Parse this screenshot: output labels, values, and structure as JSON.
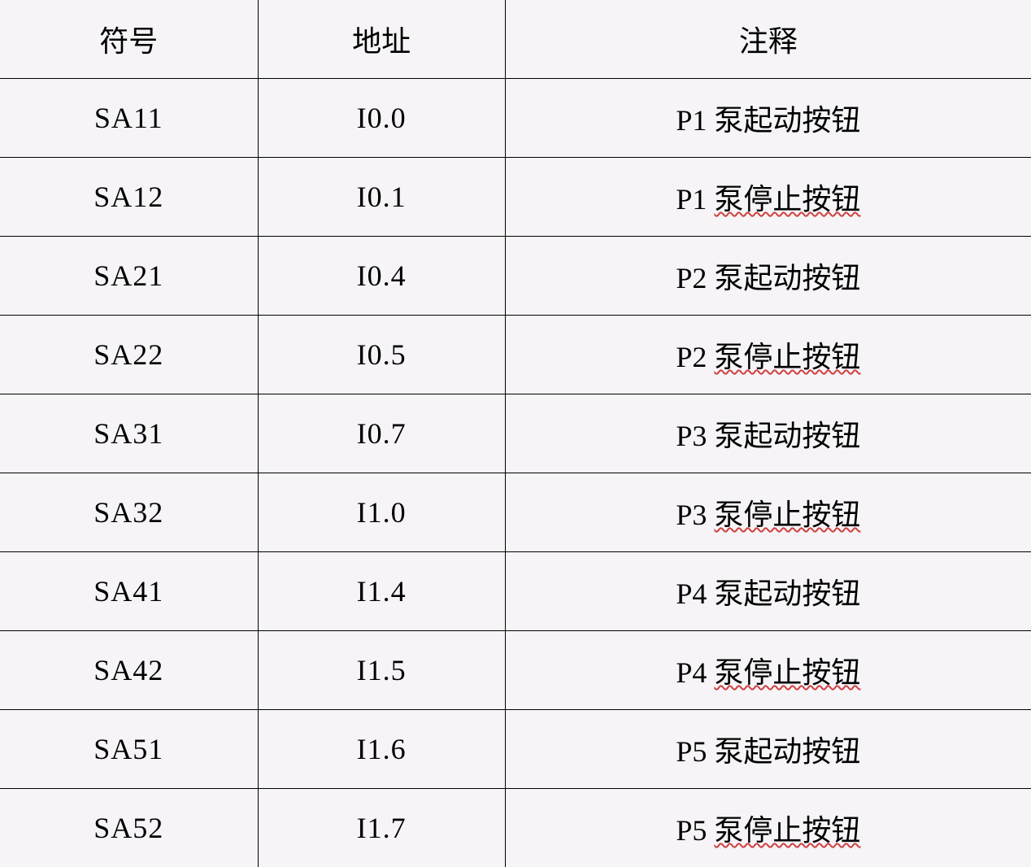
{
  "table": {
    "background_color": "#f6f4f7",
    "text_color": "#000000",
    "border_color": "#000000",
    "font_size": 36,
    "wavy_underline_color": "#d04040",
    "columns": [
      {
        "key": "symbol",
        "label": "符号",
        "width": "25%"
      },
      {
        "key": "address",
        "label": "地址",
        "width": "24%"
      },
      {
        "key": "comment",
        "label": "注释",
        "width": "51%"
      }
    ],
    "rows": [
      {
        "symbol": "SA11",
        "address": "I0.0",
        "comment_prefix": "P1 ",
        "comment_main": "泵起动按钮",
        "wavy": false
      },
      {
        "symbol": "SA12",
        "address": "I0.1",
        "comment_prefix": "P1 ",
        "comment_main": "泵停止按钮",
        "wavy": true
      },
      {
        "symbol": "SA21",
        "address": "I0.4",
        "comment_prefix": "P2 ",
        "comment_main": "泵起动按钮",
        "wavy": false
      },
      {
        "symbol": "SA22",
        "address": "I0.5",
        "comment_prefix": "P2 ",
        "comment_main": "泵停止按钮",
        "wavy": true
      },
      {
        "symbol": "SA31",
        "address": "I0.7",
        "comment_prefix": "P3 ",
        "comment_main": "泵起动按钮",
        "wavy": false
      },
      {
        "symbol": "SA32",
        "address": "I1.0",
        "comment_prefix": "P3 ",
        "comment_main": "泵停止按钮",
        "wavy": true
      },
      {
        "symbol": "SA41",
        "address": "I1.4",
        "comment_prefix": "P4 ",
        "comment_main": "泵起动按钮",
        "wavy": false
      },
      {
        "symbol": "SA42",
        "address": "I1.5",
        "comment_prefix": "P4 ",
        "comment_main": "泵停止按钮",
        "wavy": true
      },
      {
        "symbol": "SA51",
        "address": "I1.6",
        "comment_prefix": "P5 ",
        "comment_main": "泵起动按钮",
        "wavy": false
      },
      {
        "symbol": "SA52",
        "address": "I1.7",
        "comment_prefix": "P5 ",
        "comment_main": "泵停止按钮",
        "wavy": true
      }
    ]
  }
}
